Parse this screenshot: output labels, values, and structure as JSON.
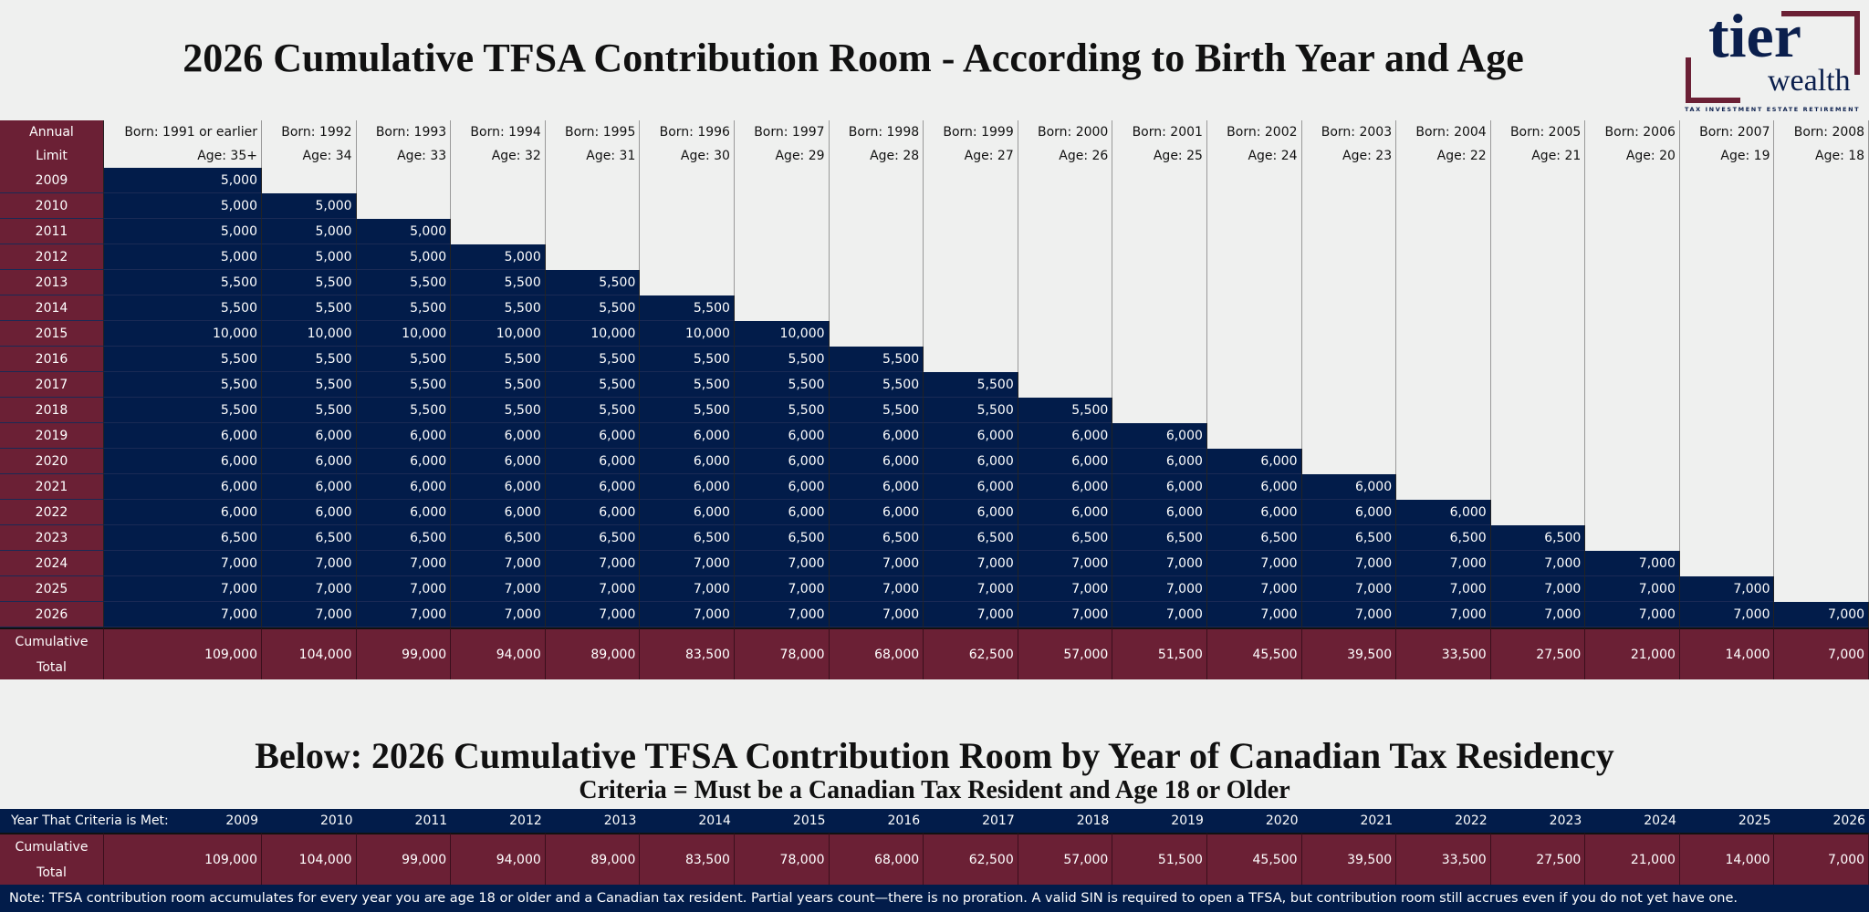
{
  "title": "2026 Cumulative TFSA Contribution Room - According to Birth Year and Age",
  "logo": {
    "word1": "tier",
    "word2": "wealth",
    "tagline": "TAX   INVESTMENT   ESTATE   RETIREMENT"
  },
  "colors": {
    "navy": "#021c4a",
    "maroon": "#6b2035",
    "background": "#eff0ef"
  },
  "table1": {
    "corner_label": [
      "Annual",
      "Limit"
    ],
    "columns": [
      {
        "born": "Born: 1991 or earlier",
        "age": "Age: 35+"
      },
      {
        "born": "Born: 1992",
        "age": "Age: 34"
      },
      {
        "born": "Born: 1993",
        "age": "Age: 33"
      },
      {
        "born": "Born: 1994",
        "age": "Age: 32"
      },
      {
        "born": "Born: 1995",
        "age": "Age: 31"
      },
      {
        "born": "Born: 1996",
        "age": "Age: 30"
      },
      {
        "born": "Born: 1997",
        "age": "Age: 29"
      },
      {
        "born": "Born: 1998",
        "age": "Age: 28"
      },
      {
        "born": "Born: 1999",
        "age": "Age: 27"
      },
      {
        "born": "Born: 2000",
        "age": "Age: 26"
      },
      {
        "born": "Born: 2001",
        "age": "Age: 25"
      },
      {
        "born": "Born: 2002",
        "age": "Age: 24"
      },
      {
        "born": "Born: 2003",
        "age": "Age: 23"
      },
      {
        "born": "Born: 2004",
        "age": "Age: 22"
      },
      {
        "born": "Born: 2005",
        "age": "Age: 21"
      },
      {
        "born": "Born: 2006",
        "age": "Age: 20"
      },
      {
        "born": "Born: 2007",
        "age": "Age: 19"
      },
      {
        "born": "Born: 2008",
        "age": "Age: 18"
      }
    ],
    "rows": [
      {
        "year": "2009",
        "limit": "5,000"
      },
      {
        "year": "2010",
        "limit": "5,000"
      },
      {
        "year": "2011",
        "limit": "5,000"
      },
      {
        "year": "2012",
        "limit": "5,000"
      },
      {
        "year": "2013",
        "limit": "5,500"
      },
      {
        "year": "2014",
        "limit": "5,500"
      },
      {
        "year": "2015",
        "limit": "10,000"
      },
      {
        "year": "2016",
        "limit": "5,500"
      },
      {
        "year": "2017",
        "limit": "5,500"
      },
      {
        "year": "2018",
        "limit": "5,500"
      },
      {
        "year": "2019",
        "limit": "6,000"
      },
      {
        "year": "2020",
        "limit": "6,000"
      },
      {
        "year": "2021",
        "limit": "6,000"
      },
      {
        "year": "2022",
        "limit": "6,000"
      },
      {
        "year": "2023",
        "limit": "6,500"
      },
      {
        "year": "2024",
        "limit": "7,000"
      },
      {
        "year": "2025",
        "limit": "7,000"
      },
      {
        "year": "2026",
        "limit": "7,000"
      }
    ],
    "total_label": [
      "Cumulative",
      "Total"
    ],
    "totals": [
      "109,000",
      "104,000",
      "99,000",
      "94,000",
      "89,000",
      "83,500",
      "78,000",
      "68,000",
      "62,500",
      "57,000",
      "51,500",
      "45,500",
      "39,500",
      "33,500",
      "27,500",
      "21,000",
      "14,000",
      "7,000"
    ]
  },
  "section2": {
    "title": "Below: 2026 Cumulative TFSA Contribution Room by Year of Canadian Tax Residency",
    "subtitle": "Criteria = Must be a Canadian Tax Resident and Age 18 or Older",
    "year_label": "Year That Criteria is Met:",
    "years": [
      "2009",
      "2010",
      "2011",
      "2012",
      "2013",
      "2014",
      "2015",
      "2016",
      "2017",
      "2018",
      "2019",
      "2020",
      "2021",
      "2022",
      "2023",
      "2024",
      "2025",
      "2026"
    ],
    "total_label": [
      "Cumulative",
      "Total"
    ],
    "totals": [
      "109,000",
      "104,000",
      "99,000",
      "94,000",
      "89,000",
      "83,500",
      "78,000",
      "68,000",
      "62,500",
      "57,000",
      "51,500",
      "45,500",
      "39,500",
      "33,500",
      "27,500",
      "21,000",
      "14,000",
      "7,000"
    ]
  },
  "note": "Note: TFSA contribution room accumulates for every year you are age 18 or older and a Canadian tax resident. Partial years count—there is no proration. A valid SIN is required to open a TFSA, but contribution room still accrues even if you do not yet have one."
}
